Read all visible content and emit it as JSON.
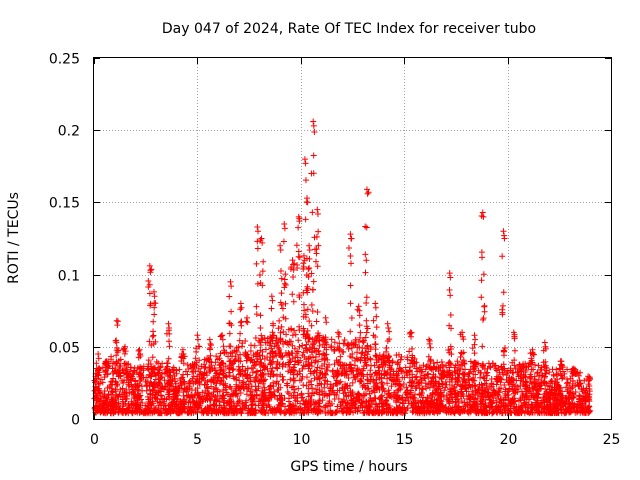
{
  "chart_data": {
    "type": "scatter",
    "title": "Day 047 of 2024, Rate Of TEC Index for receiver tubo",
    "xlabel": "GPS time / hours",
    "ylabel": "ROTI / TECUs",
    "xlim": [
      0,
      25
    ],
    "ylim": [
      0,
      0.25
    ],
    "x_ticks": [
      0,
      5,
      10,
      15,
      20,
      25
    ],
    "y_ticks": [
      0,
      0.05,
      0.1,
      0.15,
      0.2,
      0.25
    ],
    "x_tick_labels": [
      "0",
      "5",
      "10",
      "15",
      "20",
      "25"
    ],
    "y_tick_labels": [
      "0",
      "0.05",
      "0.1",
      "0.15",
      "0.2",
      "0.25"
    ],
    "grid": true,
    "marker": "plus",
    "marker_color": "#ff0000",
    "time_range_hours": [
      0,
      24
    ],
    "series": [
      {
        "name": "ROTI",
        "background_band": [
          {
            "x": 0,
            "y_max": 0.035
          },
          {
            "x": 1,
            "y_max": 0.045
          },
          {
            "x": 2,
            "y_max": 0.035
          },
          {
            "x": 3,
            "y_max": 0.04
          },
          {
            "x": 4,
            "y_max": 0.035
          },
          {
            "x": 5,
            "y_max": 0.04
          },
          {
            "x": 6,
            "y_max": 0.045
          },
          {
            "x": 7,
            "y_max": 0.05
          },
          {
            "x": 8,
            "y_max": 0.055
          },
          {
            "x": 9,
            "y_max": 0.06
          },
          {
            "x": 10,
            "y_max": 0.065
          },
          {
            "x": 11,
            "y_max": 0.06
          },
          {
            "x": 12,
            "y_max": 0.055
          },
          {
            "x": 13,
            "y_max": 0.055
          },
          {
            "x": 14,
            "y_max": 0.045
          },
          {
            "x": 15,
            "y_max": 0.045
          },
          {
            "x": 16,
            "y_max": 0.04
          },
          {
            "x": 17,
            "y_max": 0.04
          },
          {
            "x": 18,
            "y_max": 0.04
          },
          {
            "x": 19,
            "y_max": 0.04
          },
          {
            "x": 20,
            "y_max": 0.035
          },
          {
            "x": 21,
            "y_max": 0.04
          },
          {
            "x": 22,
            "y_max": 0.035
          },
          {
            "x": 23,
            "y_max": 0.035
          },
          {
            "x": 24,
            "y_max": 0.03
          }
        ],
        "spikes": [
          {
            "x": 0.2,
            "peak": 0.045
          },
          {
            "x": 0.6,
            "peak": 0.04
          },
          {
            "x": 1.1,
            "peak": 0.068
          },
          {
            "x": 1.5,
            "peak": 0.05
          },
          {
            "x": 2.2,
            "peak": 0.048
          },
          {
            "x": 2.7,
            "peak": 0.106
          },
          {
            "x": 2.9,
            "peak": 0.088
          },
          {
            "x": 3.6,
            "peak": 0.066
          },
          {
            "x": 4.3,
            "peak": 0.048
          },
          {
            "x": 5.0,
            "peak": 0.058
          },
          {
            "x": 5.6,
            "peak": 0.055
          },
          {
            "x": 6.2,
            "peak": 0.058
          },
          {
            "x": 6.6,
            "peak": 0.095
          },
          {
            "x": 7.1,
            "peak": 0.08
          },
          {
            "x": 7.4,
            "peak": 0.07
          },
          {
            "x": 7.9,
            "peak": 0.133
          },
          {
            "x": 8.1,
            "peak": 0.125
          },
          {
            "x": 8.6,
            "peak": 0.085
          },
          {
            "x": 9.0,
            "peak": 0.12
          },
          {
            "x": 9.2,
            "peak": 0.135
          },
          {
            "x": 9.6,
            "peak": 0.11
          },
          {
            "x": 9.9,
            "peak": 0.14
          },
          {
            "x": 10.2,
            "peak": 0.18
          },
          {
            "x": 10.3,
            "peak": 0.153
          },
          {
            "x": 10.4,
            "peak": 0.12
          },
          {
            "x": 10.6,
            "peak": 0.206
          },
          {
            "x": 10.8,
            "peak": 0.145
          },
          {
            "x": 11.2,
            "peak": 0.07
          },
          {
            "x": 11.8,
            "peak": 0.06
          },
          {
            "x": 12.4,
            "peak": 0.128
          },
          {
            "x": 12.8,
            "peak": 0.078
          },
          {
            "x": 13.2,
            "peak": 0.159
          },
          {
            "x": 13.6,
            "peak": 0.08
          },
          {
            "x": 14.2,
            "peak": 0.066
          },
          {
            "x": 15.3,
            "peak": 0.06
          },
          {
            "x": 16.2,
            "peak": 0.055
          },
          {
            "x": 17.2,
            "peak": 0.101
          },
          {
            "x": 17.8,
            "peak": 0.06
          },
          {
            "x": 18.4,
            "peak": 0.058
          },
          {
            "x": 18.8,
            "peak": 0.143
          },
          {
            "x": 19.8,
            "peak": 0.13
          },
          {
            "x": 20.3,
            "peak": 0.06
          },
          {
            "x": 21.2,
            "peak": 0.048
          },
          {
            "x": 21.8,
            "peak": 0.053
          },
          {
            "x": 22.6,
            "peak": 0.04
          },
          {
            "x": 23.2,
            "peak": 0.035
          }
        ]
      }
    ]
  }
}
